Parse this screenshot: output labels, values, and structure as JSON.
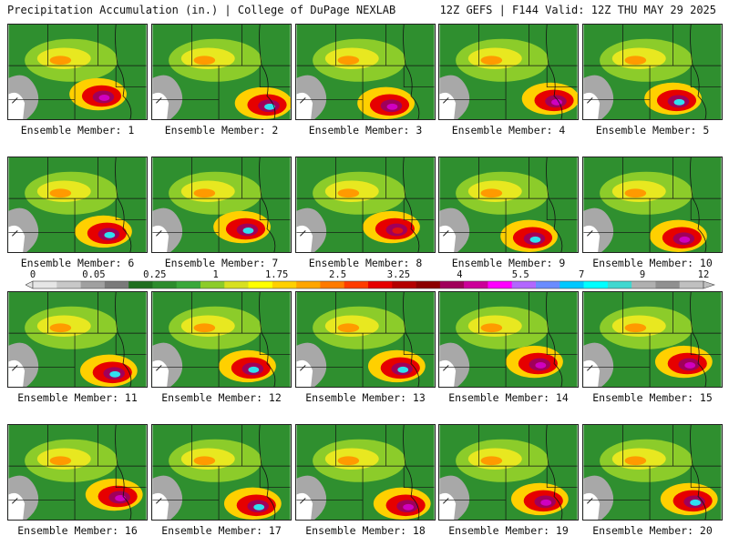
{
  "header": {
    "left": "Precipitation Accumulation (in.) | College of DuPage NEXLAB",
    "right": "12Z GEFS | F144 Valid: 12Z THU MAY 29 2025"
  },
  "members": [
    {
      "label": "Ensemble Member: 1",
      "max": "magenta"
    },
    {
      "label": "Ensemble Member: 2",
      "max": "cyan"
    },
    {
      "label": "Ensemble Member: 3",
      "max": "magenta"
    },
    {
      "label": "Ensemble Member: 4",
      "max": "magenta"
    },
    {
      "label": "Ensemble Member: 5",
      "max": "cyan"
    },
    {
      "label": "Ensemble Member: 6",
      "max": "cyan"
    },
    {
      "label": "Ensemble Member: 7",
      "max": "cyan"
    },
    {
      "label": "Ensemble Member: 8",
      "max": "red"
    },
    {
      "label": "Ensemble Member: 9",
      "max": "cyan"
    },
    {
      "label": "Ensemble Member: 10",
      "max": "magenta"
    },
    {
      "label": "Ensemble Member: 11",
      "max": "cyan"
    },
    {
      "label": "Ensemble Member: 12",
      "max": "cyan"
    },
    {
      "label": "Ensemble Member: 13",
      "max": "cyan"
    },
    {
      "label": "Ensemble Member: 14",
      "max": "magenta"
    },
    {
      "label": "Ensemble Member: 15",
      "max": "magenta"
    },
    {
      "label": "Ensemble Member: 16",
      "max": "magenta"
    },
    {
      "label": "Ensemble Member: 17",
      "max": "cyan"
    },
    {
      "label": "Ensemble Member: 18",
      "max": "magenta"
    },
    {
      "label": "Ensemble Member: 19",
      "max": "magenta"
    },
    {
      "label": "Ensemble Member: 20",
      "max": "cyan"
    }
  ],
  "scale": {
    "labels": [
      "0",
      "0.05",
      "0.25",
      "1",
      "1.75",
      "2.5",
      "3.25",
      "4",
      "5.5",
      "7",
      "9",
      "12"
    ],
    "colors": [
      "#e6e6e6",
      "#c8c8c8",
      "#a0a0a0",
      "#7a7a7a",
      "#1f6e1f",
      "#2c8c2c",
      "#3aa83a",
      "#8ccc2a",
      "#d8e020",
      "#ffff00",
      "#ffd000",
      "#ffa500",
      "#ff7a00",
      "#ff3c00",
      "#e60000",
      "#b40000",
      "#8c0000",
      "#a0005a",
      "#cc0099",
      "#ff00ff",
      "#b266ff",
      "#6a8cff",
      "#00c8ff",
      "#00ffff",
      "#40d8d0",
      "#b0b0b0",
      "#909090",
      "#c0c0c0"
    ]
  }
}
